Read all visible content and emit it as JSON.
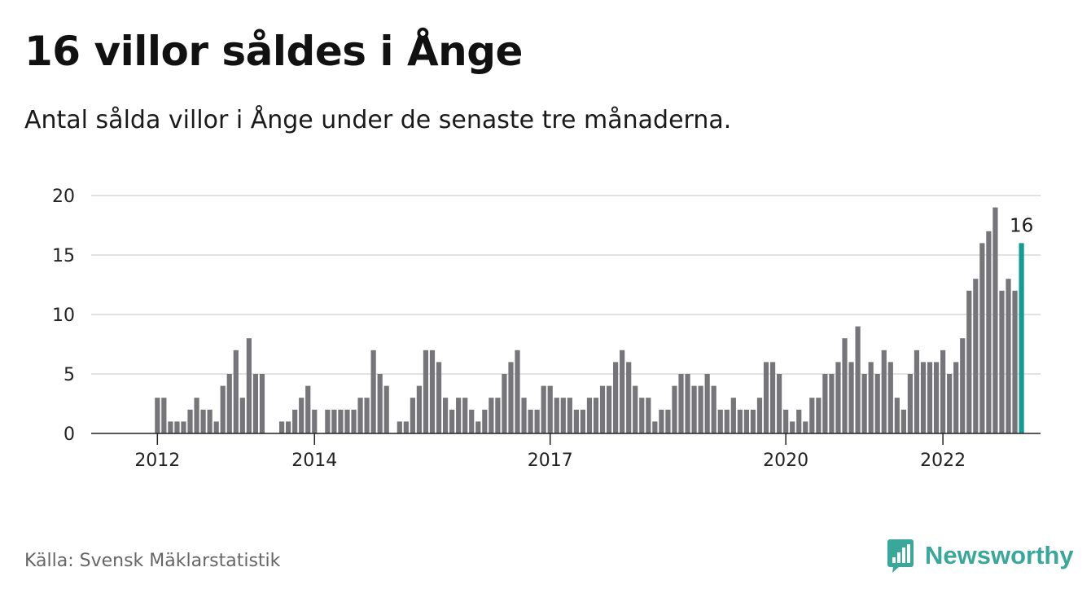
{
  "header": {
    "title": "16 villor såldes i Ånge",
    "subtitle": "Antal sålda villor i Ånge under de senaste tre månaderna."
  },
  "footer": {
    "source": "Källa: Svensk Mäklarstatistik",
    "brand": "Newsworthy",
    "brand_icon": "bar-chart-speech-bubble-icon"
  },
  "colors": {
    "bar": "#767579",
    "highlight": "#139b94",
    "grid": "#d9d9d9",
    "brand": "#3aa79b"
  },
  "chart_data": {
    "type": "bar",
    "title": "16 villor såldes i Ånge",
    "subtitle": "Antal sålda villor i Ånge under de senaste tre månaderna.",
    "xlabel": "",
    "ylabel": "",
    "ylim": [
      0,
      20
    ],
    "yticks": [
      0,
      5,
      10,
      15,
      20
    ],
    "xticks": [
      "2012",
      "2014",
      "2017",
      "2020",
      "2022"
    ],
    "grid": true,
    "legend": "none",
    "frequency": "monthly",
    "start": "2011-05",
    "end": "2022-12",
    "values": [
      null,
      null,
      null,
      null,
      null,
      null,
      null,
      null,
      null,
      null,
      null,
      null,
      null,
      null,
      null,
      null,
      null,
      null,
      null,
      null,
      null,
      null,
      null,
      null,
      null,
      null,
      null,
      null,
      null,
      null,
      null,
      null,
      null,
      null,
      null,
      null,
      null,
      null,
      null,
      null,
      null,
      null,
      null,
      null,
      null,
      null,
      null,
      null,
      null,
      null,
      null,
      null,
      null,
      null,
      null,
      null,
      null,
      null,
      null,
      null,
      null,
      null,
      null,
      null,
      null,
      null,
      null,
      null,
      null,
      null,
      null,
      null,
      null,
      null,
      null,
      null,
      null,
      null,
      null,
      null,
      null,
      null,
      null,
      null,
      null,
      null,
      null,
      null,
      null,
      null,
      null,
      null,
      null,
      null,
      null,
      null,
      null,
      null,
      null,
      null,
      null,
      null,
      null,
      null,
      null,
      null,
      null,
      null,
      null,
      null,
      null,
      null,
      null,
      null,
      null,
      null,
      null,
      null,
      null,
      null,
      null,
      null,
      null,
      null,
      null,
      null,
      null,
      null,
      null,
      null,
      null,
      null,
      null,
      null,
      null,
      null,
      null,
      null,
      null,
      null,
      null,
      null,
      null,
      null,
      null,
      null,
      null,
      null,
      null,
      null,
      null,
      null,
      null,
      null,
      null,
      null,
      null,
      null,
      null,
      null
    ],
    "highlight": {
      "label": "16",
      "value": 16
    }
  }
}
